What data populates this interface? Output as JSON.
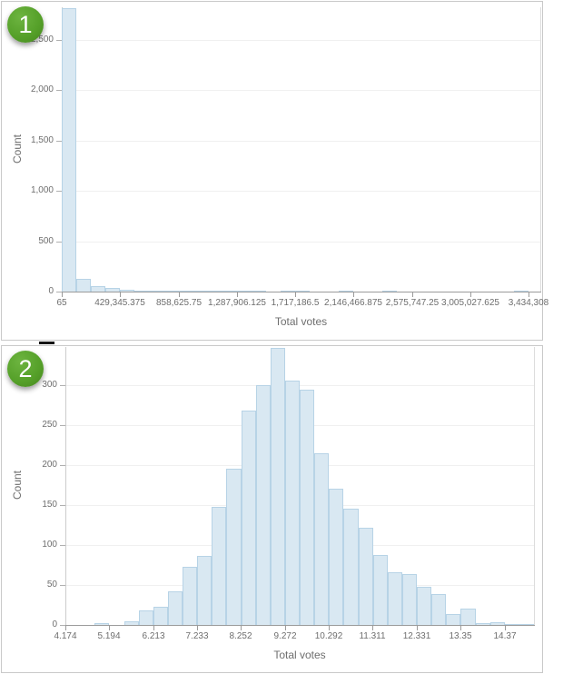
{
  "colors": {
    "bar_fill": "#d9e8f2",
    "bar_border": "#b7d3e6",
    "grid_line": "#f0f0f0",
    "x_axis_line": "#9b9b9b",
    "y_axis_line": "#cccccc",
    "tick_mark": "#b0b0b0",
    "label_text": "#6e6e6e",
    "card_border": "#c9c9c9",
    "badge_green": "#55a029",
    "badge_text": "#ffffff"
  },
  "chart_data": [
    {
      "type": "bar",
      "subtype": "histogram",
      "badge": "1",
      "title": "",
      "xlabel": "Total votes",
      "ylabel": "Count",
      "grid": "horizontal",
      "legend": "none",
      "x_bin_start": 65,
      "x_bin_width": 107320.09,
      "num_bins": 32,
      "x_axis_min": 65,
      "x_axis_max": 3521000,
      "ylim": [
        0,
        2820
      ],
      "x_ticks": [
        {
          "value": 65,
          "label": "65"
        },
        {
          "value": 429345.375,
          "label": "429,345.375"
        },
        {
          "value": 858625.75,
          "label": "858,625.75"
        },
        {
          "value": 1287906.125,
          "label": "1,287,906.125"
        },
        {
          "value": 1717186.5,
          "label": "1,717,186.5"
        },
        {
          "value": 2146466.875,
          "label": "2,146,466.875"
        },
        {
          "value": 2575747.25,
          "label": "2,575,747.25"
        },
        {
          "value": 3005027.625,
          "label": "3,005,027.625"
        },
        {
          "value": 3434308,
          "label": "3,434,308"
        }
      ],
      "y_ticks": [
        {
          "value": 0,
          "label": "0"
        },
        {
          "value": 500,
          "label": "500"
        },
        {
          "value": 1000,
          "label": "1,000"
        },
        {
          "value": 1500,
          "label": "1,500"
        },
        {
          "value": 2000,
          "label": "2,000"
        },
        {
          "value": 2500,
          "label": "2,500"
        }
      ],
      "counts": [
        2807,
        128,
        54,
        36,
        15,
        8,
        5,
        8,
        3,
        2,
        1,
        2,
        1,
        1,
        0,
        1,
        1,
        0,
        0,
        1,
        0,
        0,
        1,
        0,
        0,
        0,
        0,
        0,
        0,
        0,
        0,
        1
      ]
    },
    {
      "type": "bar",
      "subtype": "histogram",
      "badge": "2",
      "title": "",
      "xlabel": "Total votes",
      "ylabel": "Count",
      "grid": "horizontal",
      "legend": "none",
      "x_bin_start": 4.174,
      "x_bin_width": 0.34,
      "num_bins": 32,
      "x_axis_min": 4.174,
      "x_axis_max": 15.054,
      "ylim": [
        0,
        348
      ],
      "x_ticks": [
        {
          "value": 4.174,
          "label": "4.174"
        },
        {
          "value": 5.194,
          "label": "5.194"
        },
        {
          "value": 6.213,
          "label": "6.213"
        },
        {
          "value": 7.233,
          "label": "7.233"
        },
        {
          "value": 8.252,
          "label": "8.252"
        },
        {
          "value": 9.272,
          "label": "9.272"
        },
        {
          "value": 10.292,
          "label": "10.292"
        },
        {
          "value": 11.311,
          "label": "11.311"
        },
        {
          "value": 12.331,
          "label": "12.331"
        },
        {
          "value": 13.35,
          "label": "13.35"
        },
        {
          "value": 14.37,
          "label": "14.37"
        }
      ],
      "y_ticks": [
        {
          "value": 0,
          "label": "0"
        },
        {
          "value": 50,
          "label": "50"
        },
        {
          "value": 100,
          "label": "100"
        },
        {
          "value": 150,
          "label": "150"
        },
        {
          "value": 200,
          "label": "200"
        },
        {
          "value": 250,
          "label": "250"
        },
        {
          "value": 300,
          "label": "300"
        }
      ],
      "counts": [
        0,
        0,
        2,
        0,
        5,
        18,
        23,
        42,
        73,
        86,
        148,
        196,
        268,
        300,
        347,
        306,
        295,
        215,
        171,
        146,
        122,
        87,
        66,
        64,
        48,
        39,
        14,
        20,
        2,
        3,
        1,
        1
      ]
    }
  ]
}
